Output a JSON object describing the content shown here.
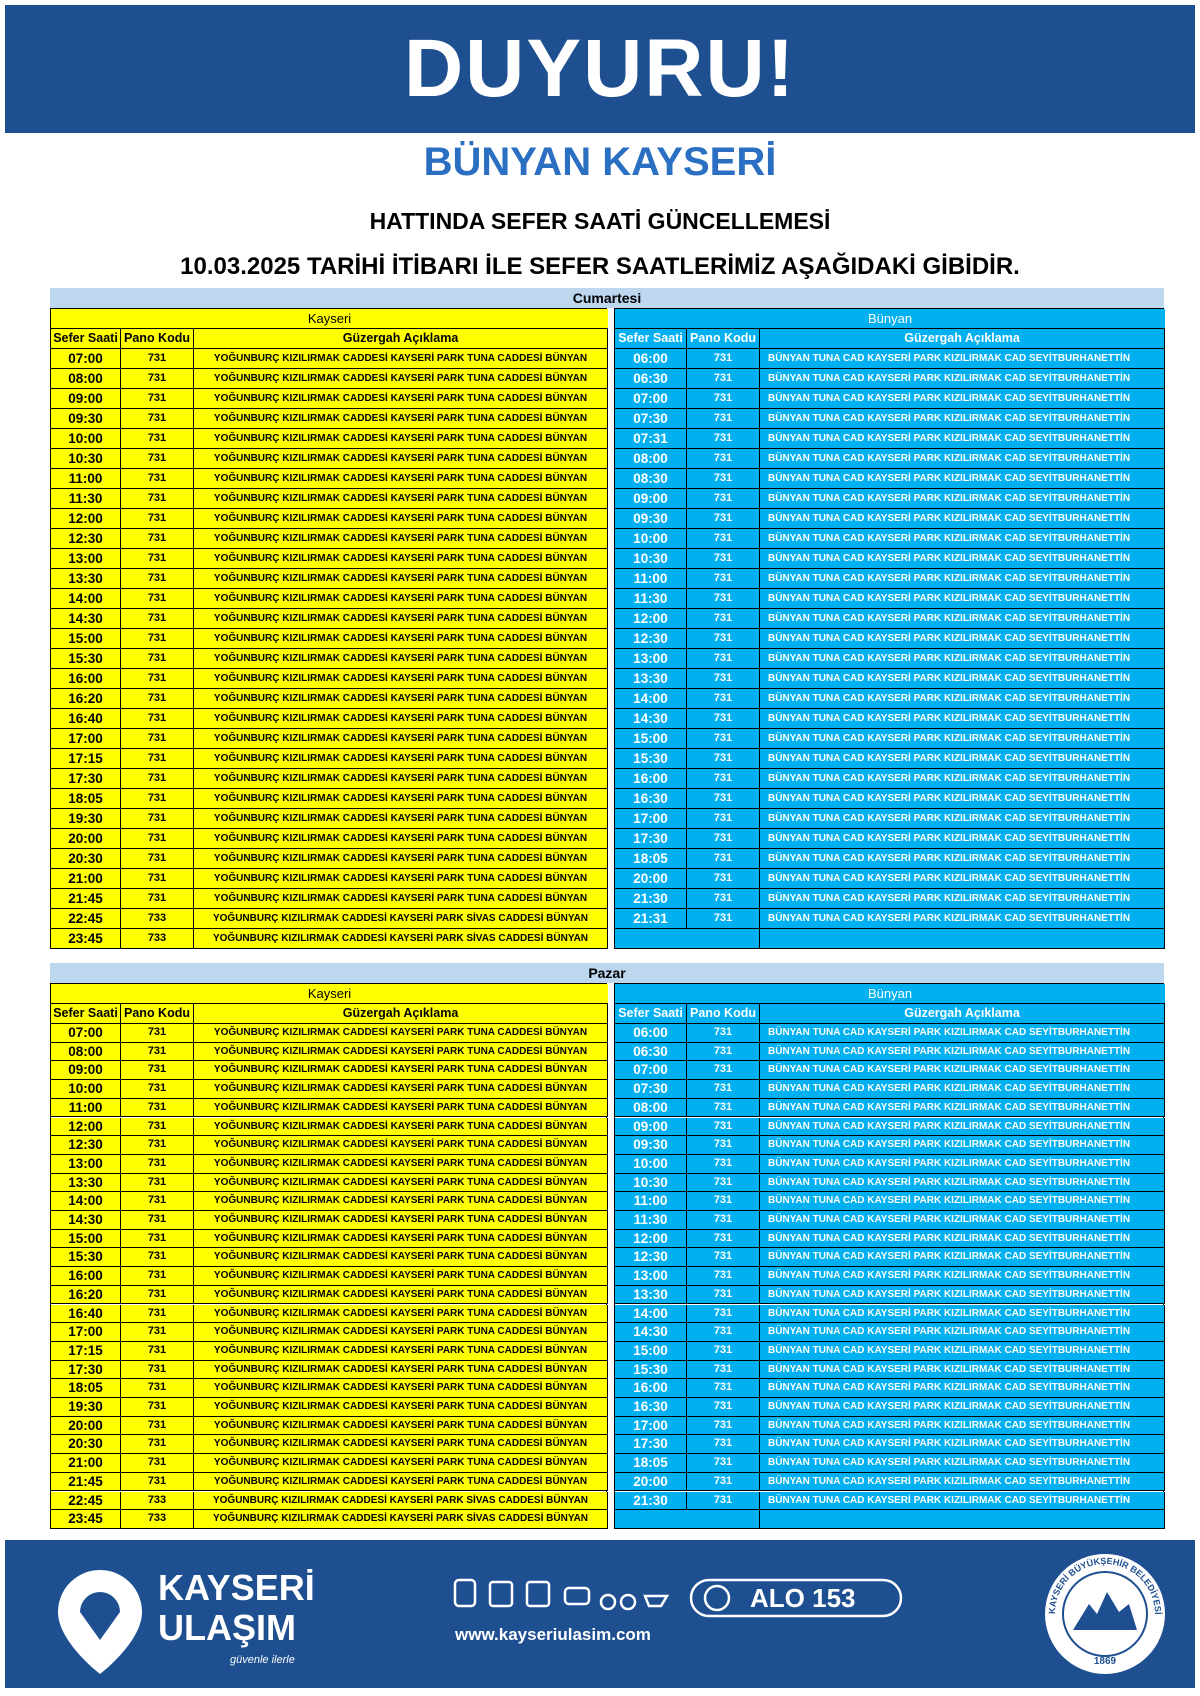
{
  "header": {
    "title": "DUYURU!",
    "subtitle": "BÜNYAN KAYSERİ",
    "line1": "HATTINDA SEFER SAATİ GÜNCELLEMESİ",
    "line2": "10.03.2025 TARİHİ İTİBARI İLE SEFER SAATLERİMİZ AŞAĞIDAKİ GİBİDİR."
  },
  "sections": [
    {
      "title": "Cumartesi",
      "left": {
        "title": "Kayseri",
        "columns": [
          "Sefer Saati",
          "Pano Kodu",
          "Güzergah Açıklama"
        ],
        "rows": [
          [
            "07:00",
            "731",
            "YOĞUNBURÇ KIZILIRMAK CADDESİ KAYSERİ PARK TUNA CADDESİ BÜNYAN"
          ],
          [
            "08:00",
            "731",
            "YOĞUNBURÇ KIZILIRMAK CADDESİ KAYSERİ PARK TUNA CADDESİ BÜNYAN"
          ],
          [
            "09:00",
            "731",
            "YOĞUNBURÇ KIZILIRMAK CADDESİ KAYSERİ PARK TUNA CADDESİ BÜNYAN"
          ],
          [
            "09:30",
            "731",
            "YOĞUNBURÇ KIZILIRMAK CADDESİ KAYSERİ PARK TUNA CADDESİ BÜNYAN"
          ],
          [
            "10:00",
            "731",
            "YOĞUNBURÇ KIZILIRMAK CADDESİ KAYSERİ PARK TUNA CADDESİ BÜNYAN"
          ],
          [
            "10:30",
            "731",
            "YOĞUNBURÇ KIZILIRMAK CADDESİ KAYSERİ PARK TUNA CADDESİ BÜNYAN"
          ],
          [
            "11:00",
            "731",
            "YOĞUNBURÇ KIZILIRMAK CADDESİ KAYSERİ PARK TUNA CADDESİ BÜNYAN"
          ],
          [
            "11:30",
            "731",
            "YOĞUNBURÇ KIZILIRMAK CADDESİ KAYSERİ PARK TUNA CADDESİ BÜNYAN"
          ],
          [
            "12:00",
            "731",
            "YOĞUNBURÇ KIZILIRMAK CADDESİ KAYSERİ PARK TUNA CADDESİ BÜNYAN"
          ],
          [
            "12:30",
            "731",
            "YOĞUNBURÇ KIZILIRMAK CADDESİ KAYSERİ PARK TUNA CADDESİ BÜNYAN"
          ],
          [
            "13:00",
            "731",
            "YOĞUNBURÇ KIZILIRMAK CADDESİ KAYSERİ PARK TUNA CADDESİ BÜNYAN"
          ],
          [
            "13:30",
            "731",
            "YOĞUNBURÇ KIZILIRMAK CADDESİ KAYSERİ PARK TUNA CADDESİ BÜNYAN"
          ],
          [
            "14:00",
            "731",
            "YOĞUNBURÇ KIZILIRMAK CADDESİ KAYSERİ PARK TUNA CADDESİ BÜNYAN"
          ],
          [
            "14:30",
            "731",
            "YOĞUNBURÇ KIZILIRMAK CADDESİ KAYSERİ PARK TUNA CADDESİ BÜNYAN"
          ],
          [
            "15:00",
            "731",
            "YOĞUNBURÇ KIZILIRMAK CADDESİ KAYSERİ PARK TUNA CADDESİ BÜNYAN"
          ],
          [
            "15:30",
            "731",
            "YOĞUNBURÇ KIZILIRMAK CADDESİ KAYSERİ PARK TUNA CADDESİ BÜNYAN"
          ],
          [
            "16:00",
            "731",
            "YOĞUNBURÇ KIZILIRMAK CADDESİ KAYSERİ PARK TUNA CADDESİ BÜNYAN"
          ],
          [
            "16:20",
            "731",
            "YOĞUNBURÇ KIZILIRMAK CADDESİ KAYSERİ PARK TUNA CADDESİ BÜNYAN"
          ],
          [
            "16:40",
            "731",
            "YOĞUNBURÇ KIZILIRMAK CADDESİ KAYSERİ PARK TUNA CADDESİ BÜNYAN"
          ],
          [
            "17:00",
            "731",
            "YOĞUNBURÇ KIZILIRMAK CADDESİ KAYSERİ PARK TUNA CADDESİ BÜNYAN"
          ],
          [
            "17:15",
            "731",
            "YOĞUNBURÇ KIZILIRMAK CADDESİ KAYSERİ PARK TUNA CADDESİ BÜNYAN"
          ],
          [
            "17:30",
            "731",
            "YOĞUNBURÇ KIZILIRMAK CADDESİ KAYSERİ PARK TUNA CADDESİ BÜNYAN"
          ],
          [
            "18:05",
            "731",
            "YOĞUNBURÇ KIZILIRMAK CADDESİ KAYSERİ PARK TUNA CADDESİ BÜNYAN"
          ],
          [
            "19:30",
            "731",
            "YOĞUNBURÇ KIZILIRMAK CADDESİ KAYSERİ PARK TUNA CADDESİ BÜNYAN"
          ],
          [
            "20:00",
            "731",
            "YOĞUNBURÇ KIZILIRMAK CADDESİ KAYSERİ PARK TUNA CADDESİ BÜNYAN"
          ],
          [
            "20:30",
            "731",
            "YOĞUNBURÇ KIZILIRMAK CADDESİ KAYSERİ PARK TUNA CADDESİ BÜNYAN"
          ],
          [
            "21:00",
            "731",
            "YOĞUNBURÇ KIZILIRMAK CADDESİ KAYSERİ PARK TUNA CADDESİ BÜNYAN"
          ],
          [
            "21:45",
            "731",
            "YOĞUNBURÇ KIZILIRMAK CADDESİ KAYSERİ PARK TUNA CADDESİ BÜNYAN"
          ],
          [
            "22:45",
            "733",
            "YOĞUNBURÇ KIZILIRMAK CADDESİ KAYSERİ PARK SİVAS CADDESİ BÜNYAN"
          ],
          [
            "23:45",
            "733",
            "YOĞUNBURÇ KIZILIRMAK CADDESİ KAYSERİ PARK SİVAS CADDESİ BÜNYAN"
          ]
        ]
      },
      "right": {
        "title": "Bünyan",
        "columns": [
          "Sefer Saati",
          "Pano Kodu",
          "Güzergah Açıklama"
        ],
        "rows": [
          [
            "06:00",
            "731",
            "BÜNYAN TUNA CAD KAYSERİ PARK KIZILIRMAK CAD SEYİTBURHANETTİN"
          ],
          [
            "06:30",
            "731",
            "BÜNYAN TUNA CAD KAYSERİ PARK KIZILIRMAK CAD SEYİTBURHANETTİN"
          ],
          [
            "07:00",
            "731",
            "BÜNYAN TUNA CAD KAYSERİ PARK KIZILIRMAK CAD SEYİTBURHANETTİN"
          ],
          [
            "07:30",
            "731",
            "BÜNYAN TUNA CAD KAYSERİ PARK KIZILIRMAK CAD SEYİTBURHANETTİN"
          ],
          [
            "07:31",
            "731",
            "BÜNYAN TUNA CAD KAYSERİ PARK KIZILIRMAK CAD SEYİTBURHANETTİN"
          ],
          [
            "08:00",
            "731",
            "BÜNYAN TUNA CAD KAYSERİ PARK KIZILIRMAK CAD SEYİTBURHANETTİN"
          ],
          [
            "08:30",
            "731",
            "BÜNYAN TUNA CAD KAYSERİ PARK KIZILIRMAK CAD SEYİTBURHANETTİN"
          ],
          [
            "09:00",
            "731",
            "BÜNYAN TUNA CAD KAYSERİ PARK KIZILIRMAK CAD SEYİTBURHANETTİN"
          ],
          [
            "09:30",
            "731",
            "BÜNYAN TUNA CAD KAYSERİ PARK KIZILIRMAK CAD SEYİTBURHANETTİN"
          ],
          [
            "10:00",
            "731",
            "BÜNYAN TUNA CAD KAYSERİ PARK KIZILIRMAK CAD SEYİTBURHANETTİN"
          ],
          [
            "10:30",
            "731",
            "BÜNYAN TUNA CAD KAYSERİ PARK KIZILIRMAK CAD SEYİTBURHANETTİN"
          ],
          [
            "11:00",
            "731",
            "BÜNYAN TUNA CAD KAYSERİ PARK KIZILIRMAK CAD SEYİTBURHANETTİN"
          ],
          [
            "11:30",
            "731",
            "BÜNYAN TUNA CAD KAYSERİ PARK KIZILIRMAK CAD SEYİTBURHANETTİN"
          ],
          [
            "12:00",
            "731",
            "BÜNYAN TUNA CAD KAYSERİ PARK KIZILIRMAK CAD SEYİTBURHANETTİN"
          ],
          [
            "12:30",
            "731",
            "BÜNYAN TUNA CAD KAYSERİ PARK KIZILIRMAK CAD SEYİTBURHANETTİN"
          ],
          [
            "13:00",
            "731",
            "BÜNYAN TUNA CAD KAYSERİ PARK KIZILIRMAK CAD SEYİTBURHANETTİN"
          ],
          [
            "13:30",
            "731",
            "BÜNYAN TUNA CAD KAYSERİ PARK KIZILIRMAK CAD SEYİTBURHANETTİN"
          ],
          [
            "14:00",
            "731",
            "BÜNYAN TUNA CAD KAYSERİ PARK KIZILIRMAK CAD SEYİTBURHANETTİN"
          ],
          [
            "14:30",
            "731",
            "BÜNYAN TUNA CAD KAYSERİ PARK KIZILIRMAK CAD SEYİTBURHANETTİN"
          ],
          [
            "15:00",
            "731",
            "BÜNYAN TUNA CAD KAYSERİ PARK KIZILIRMAK CAD SEYİTBURHANETTİN"
          ],
          [
            "15:30",
            "731",
            "BÜNYAN TUNA CAD KAYSERİ PARK KIZILIRMAK CAD SEYİTBURHANETTİN"
          ],
          [
            "16:00",
            "731",
            "BÜNYAN TUNA CAD KAYSERİ PARK KIZILIRMAK CAD SEYİTBURHANETTİN"
          ],
          [
            "16:30",
            "731",
            "BÜNYAN TUNA CAD KAYSERİ PARK KIZILIRMAK CAD SEYİTBURHANETTİN"
          ],
          [
            "17:00",
            "731",
            "BÜNYAN TUNA CAD KAYSERİ PARK KIZILIRMAK CAD SEYİTBURHANETTİN"
          ],
          [
            "17:30",
            "731",
            "BÜNYAN TUNA CAD KAYSERİ PARK KIZILIRMAK CAD SEYİTBURHANETTİN"
          ],
          [
            "18:05",
            "731",
            "BÜNYAN TUNA CAD KAYSERİ PARK KIZILIRMAK CAD SEYİTBURHANETTİN"
          ],
          [
            "20:00",
            "731",
            "BÜNYAN TUNA CAD KAYSERİ PARK KIZILIRMAK CAD SEYİTBURHANETTİN"
          ],
          [
            "21:30",
            "731",
            "BÜNYAN TUNA CAD KAYSERİ PARK KIZILIRMAK CAD SEYİTBURHANETTİN"
          ],
          [
            "21:31",
            "731",
            "BÜNYAN TUNA CAD KAYSERİ PARK KIZILIRMAK CAD SEYİTBURHANETTİN"
          ]
        ]
      }
    },
    {
      "title": "Pazar",
      "left": {
        "title": "Kayseri",
        "columns": [
          "Sefer Saati",
          "Pano Kodu",
          "Güzergah Açıklama"
        ],
        "rows": [
          [
            "07:00",
            "731",
            "YOĞUNBURÇ KIZILIRMAK CADDESİ KAYSERİ PARK TUNA CADDESİ BÜNYAN"
          ],
          [
            "08:00",
            "731",
            "YOĞUNBURÇ KIZILIRMAK CADDESİ KAYSERİ PARK TUNA CADDESİ BÜNYAN"
          ],
          [
            "09:00",
            "731",
            "YOĞUNBURÇ KIZILIRMAK CADDESİ KAYSERİ PARK TUNA CADDESİ BÜNYAN"
          ],
          [
            "10:00",
            "731",
            "YOĞUNBURÇ KIZILIRMAK CADDESİ KAYSERİ PARK TUNA CADDESİ BÜNYAN"
          ],
          [
            "11:00",
            "731",
            "YOĞUNBURÇ KIZILIRMAK CADDESİ KAYSERİ PARK TUNA CADDESİ BÜNYAN"
          ],
          [
            "12:00",
            "731",
            "YOĞUNBURÇ KIZILIRMAK CADDESİ KAYSERİ PARK TUNA CADDESİ BÜNYAN"
          ],
          [
            "12:30",
            "731",
            "YOĞUNBURÇ KIZILIRMAK CADDESİ KAYSERİ PARK TUNA CADDESİ BÜNYAN"
          ],
          [
            "13:00",
            "731",
            "YOĞUNBURÇ KIZILIRMAK CADDESİ KAYSERİ PARK TUNA CADDESİ BÜNYAN"
          ],
          [
            "13:30",
            "731",
            "YOĞUNBURÇ KIZILIRMAK CADDESİ KAYSERİ PARK TUNA CADDESİ BÜNYAN"
          ],
          [
            "14:00",
            "731",
            "YOĞUNBURÇ KIZILIRMAK CADDESİ KAYSERİ PARK TUNA CADDESİ BÜNYAN"
          ],
          [
            "14:30",
            "731",
            "YOĞUNBURÇ KIZILIRMAK CADDESİ KAYSERİ PARK TUNA CADDESİ BÜNYAN"
          ],
          [
            "15:00",
            "731",
            "YOĞUNBURÇ KIZILIRMAK CADDESİ KAYSERİ PARK TUNA CADDESİ BÜNYAN"
          ],
          [
            "15:30",
            "731",
            "YOĞUNBURÇ KIZILIRMAK CADDESİ KAYSERİ PARK TUNA CADDESİ BÜNYAN"
          ],
          [
            "16:00",
            "731",
            "YOĞUNBURÇ KIZILIRMAK CADDESİ KAYSERİ PARK TUNA CADDESİ BÜNYAN"
          ],
          [
            "16:20",
            "731",
            "YOĞUNBURÇ KIZILIRMAK CADDESİ KAYSERİ PARK TUNA CADDESİ BÜNYAN"
          ],
          [
            "16:40",
            "731",
            "YOĞUNBURÇ KIZILIRMAK CADDESİ KAYSERİ PARK TUNA CADDESİ BÜNYAN"
          ],
          [
            "17:00",
            "731",
            "YOĞUNBURÇ KIZILIRMAK CADDESİ KAYSERİ PARK TUNA CADDESİ BÜNYAN"
          ],
          [
            "17:15",
            "731",
            "YOĞUNBURÇ KIZILIRMAK CADDESİ KAYSERİ PARK TUNA CADDESİ BÜNYAN"
          ],
          [
            "17:30",
            "731",
            "YOĞUNBURÇ KIZILIRMAK CADDESİ KAYSERİ PARK TUNA CADDESİ BÜNYAN"
          ],
          [
            "18:05",
            "731",
            "YOĞUNBURÇ KIZILIRMAK CADDESİ KAYSERİ PARK TUNA CADDESİ BÜNYAN"
          ],
          [
            "19:30",
            "731",
            "YOĞUNBURÇ KIZILIRMAK CADDESİ KAYSERİ PARK TUNA CADDESİ BÜNYAN"
          ],
          [
            "20:00",
            "731",
            "YOĞUNBURÇ KIZILIRMAK CADDESİ KAYSERİ PARK TUNA CADDESİ BÜNYAN"
          ],
          [
            "20:30",
            "731",
            "YOĞUNBURÇ KIZILIRMAK CADDESİ KAYSERİ PARK TUNA CADDESİ BÜNYAN"
          ],
          [
            "21:00",
            "731",
            "YOĞUNBURÇ KIZILIRMAK CADDESİ KAYSERİ PARK TUNA CADDESİ BÜNYAN"
          ],
          [
            "21:45",
            "731",
            "YOĞUNBURÇ KIZILIRMAK CADDESİ KAYSERİ PARK TUNA CADDESİ BÜNYAN"
          ],
          [
            "22:45",
            "733",
            "YOĞUNBURÇ KIZILIRMAK CADDESİ KAYSERİ PARK SİVAS CADDESİ BÜNYAN"
          ],
          [
            "23:45",
            "733",
            "YOĞUNBURÇ KIZILIRMAK CADDESİ KAYSERİ PARK SİVAS CADDESİ BÜNYAN"
          ]
        ]
      },
      "right": {
        "title": "Bünyan",
        "columns": [
          "Sefer Saati",
          "Pano Kodu",
          "Güzergah Açıklama"
        ],
        "rows": [
          [
            "06:00",
            "731",
            "BÜNYAN TUNA CAD KAYSERİ PARK KIZILIRMAK CAD SEYİTBURHANETTİN"
          ],
          [
            "06:30",
            "731",
            "BÜNYAN TUNA CAD KAYSERİ PARK KIZILIRMAK CAD SEYİTBURHANETTİN"
          ],
          [
            "07:00",
            "731",
            "BÜNYAN TUNA CAD KAYSERİ PARK KIZILIRMAK CAD SEYİTBURHANETTİN"
          ],
          [
            "07:30",
            "731",
            "BÜNYAN TUNA CAD KAYSERİ PARK KIZILIRMAK CAD SEYİTBURHANETTİN"
          ],
          [
            "08:00",
            "731",
            "BÜNYAN TUNA CAD KAYSERİ PARK KIZILIRMAK CAD SEYİTBURHANETTİN"
          ],
          [
            "09:00",
            "731",
            "BÜNYAN TUNA CAD KAYSERİ PARK KIZILIRMAK CAD SEYİTBURHANETTİN"
          ],
          [
            "09:30",
            "731",
            "BÜNYAN TUNA CAD KAYSERİ PARK KIZILIRMAK CAD SEYİTBURHANETTİN"
          ],
          [
            "10:00",
            "731",
            "BÜNYAN TUNA CAD KAYSERİ PARK KIZILIRMAK CAD SEYİTBURHANETTİN"
          ],
          [
            "10:30",
            "731",
            "BÜNYAN TUNA CAD KAYSERİ PARK KIZILIRMAK CAD SEYİTBURHANETTİN"
          ],
          [
            "11:00",
            "731",
            "BÜNYAN TUNA CAD KAYSERİ PARK KIZILIRMAK CAD SEYİTBURHANETTİN"
          ],
          [
            "11:30",
            "731",
            "BÜNYAN TUNA CAD KAYSERİ PARK KIZILIRMAK CAD SEYİTBURHANETTİN"
          ],
          [
            "12:00",
            "731",
            "BÜNYAN TUNA CAD KAYSERİ PARK KIZILIRMAK CAD SEYİTBURHANETTİN"
          ],
          [
            "12:30",
            "731",
            "BÜNYAN TUNA CAD KAYSERİ PARK KIZILIRMAK CAD SEYİTBURHANETTİN"
          ],
          [
            "13:00",
            "731",
            "BÜNYAN TUNA CAD KAYSERİ PARK KIZILIRMAK CAD SEYİTBURHANETTİN"
          ],
          [
            "13:30",
            "731",
            "BÜNYAN TUNA CAD KAYSERİ PARK KIZILIRMAK CAD SEYİTBURHANETTİN"
          ],
          [
            "14:00",
            "731",
            "BÜNYAN TUNA CAD KAYSERİ PARK KIZILIRMAK CAD SEYİTBURHANETTİN"
          ],
          [
            "14:30",
            "731",
            "BÜNYAN TUNA CAD KAYSERİ PARK KIZILIRMAK CAD SEYİTBURHANETTİN"
          ],
          [
            "15:00",
            "731",
            "BÜNYAN TUNA CAD KAYSERİ PARK KIZILIRMAK CAD SEYİTBURHANETTİN"
          ],
          [
            "15:30",
            "731",
            "BÜNYAN TUNA CAD KAYSERİ PARK KIZILIRMAK CAD SEYİTBURHANETTİN"
          ],
          [
            "16:00",
            "731",
            "BÜNYAN TUNA CAD KAYSERİ PARK KIZILIRMAK CAD SEYİTBURHANETTİN"
          ],
          [
            "16:30",
            "731",
            "BÜNYAN TUNA CAD KAYSERİ PARK KIZILIRMAK CAD SEYİTBURHANETTİN"
          ],
          [
            "17:00",
            "731",
            "BÜNYAN TUNA CAD KAYSERİ PARK KIZILIRMAK CAD SEYİTBURHANETTİN"
          ],
          [
            "17:30",
            "731",
            "BÜNYAN TUNA CAD KAYSERİ PARK KIZILIRMAK CAD SEYİTBURHANETTİN"
          ],
          [
            "18:05",
            "731",
            "BÜNYAN TUNA CAD KAYSERİ PARK KIZILIRMAK CAD SEYİTBURHANETTİN"
          ],
          [
            "20:00",
            "731",
            "BÜNYAN TUNA CAD KAYSERİ PARK KIZILIRMAK CAD SEYİTBURHANETTİN"
          ],
          [
            "21:30",
            "731",
            "BÜNYAN TUNA CAD KAYSERİ PARK KIZILIRMAK CAD SEYİTBURHANETTİN"
          ]
        ]
      }
    }
  ],
  "footer": {
    "brand1": "KAYSERİ",
    "brand2": "ULAŞIM",
    "slogan": "güvenle ilerle",
    "website": "www.kayseriulasim.com",
    "phone": "ALO 153",
    "seal_text": "KAYSERİ BÜYÜKŞEHİR BELEDİYESİ",
    "seal_year": "1869"
  }
}
